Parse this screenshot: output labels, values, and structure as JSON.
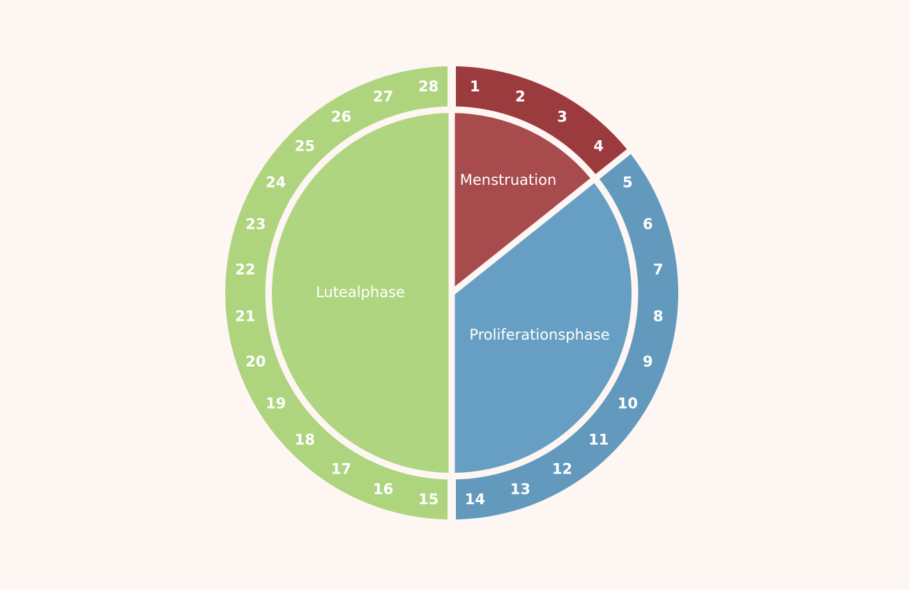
{
  "diagram": {
    "total_days": 28,
    "background_color": "#fdf6f3",
    "divider_color": "#fdf6f3",
    "phases": [
      {
        "id": "menstruation",
        "label": "Menstruation",
        "start_day": 1,
        "end_day": 4,
        "outer_color": "#9c3b3e",
        "inner_color": "#a74b4c"
      },
      {
        "id": "proliferation",
        "label": "Proliferationsphase",
        "start_day": 5,
        "end_day": 14,
        "outer_color": "#6299bd",
        "inner_color": "#669fc3"
      },
      {
        "id": "luteal",
        "label": "Lutealphase",
        "start_day": 15,
        "end_day": 28,
        "outer_color": "#aed47d",
        "inner_color": "#afd580"
      }
    ],
    "days": [
      "1",
      "2",
      "3",
      "4",
      "5",
      "6",
      "7",
      "8",
      "9",
      "10",
      "11",
      "12",
      "13",
      "14",
      "15",
      "16",
      "17",
      "18",
      "19",
      "20",
      "21",
      "22",
      "23",
      "24",
      "25",
      "26",
      "27",
      "28"
    ]
  }
}
